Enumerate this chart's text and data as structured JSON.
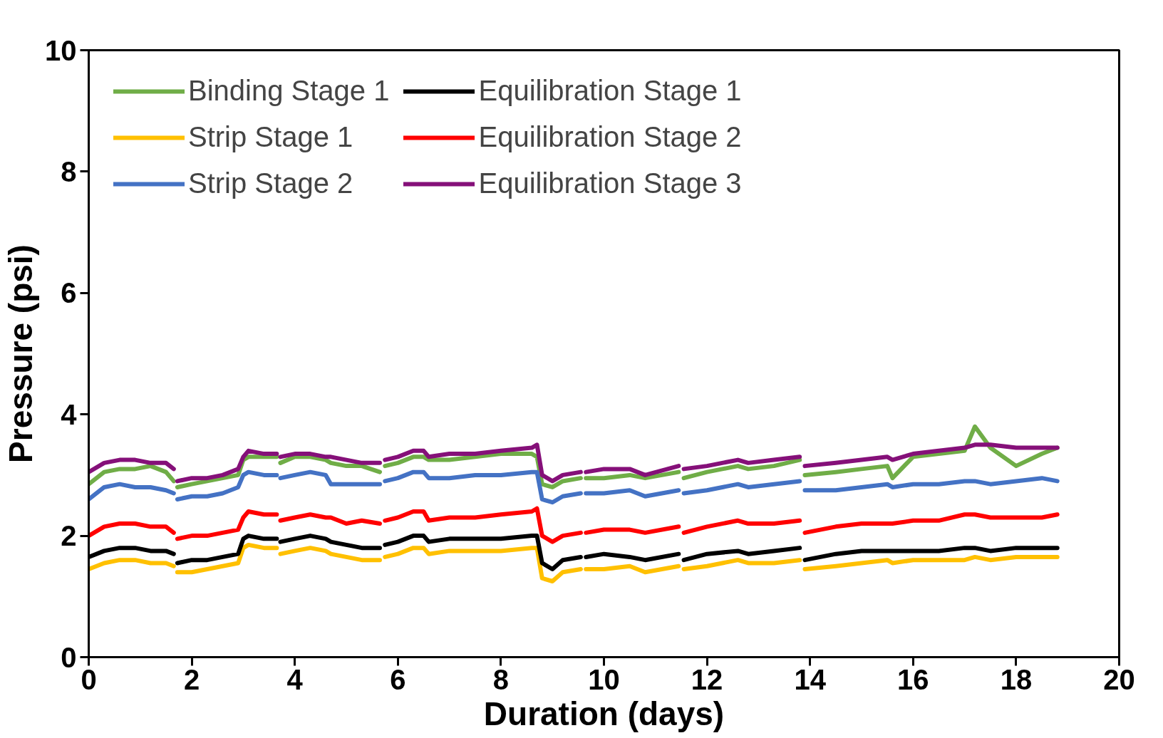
{
  "chart_data": {
    "type": "line",
    "xlabel": "Duration (days)",
    "ylabel": "Pressure (psi)",
    "x": [
      0,
      0.3,
      0.6,
      0.9,
      1.2,
      1.5,
      1.65,
      1.68,
      1.72,
      2.0,
      2.3,
      2.6,
      2.9,
      3.0,
      3.1,
      3.4,
      3.65,
      3.68,
      3.72,
      4.0,
      4.3,
      4.6,
      4.7,
      5.0,
      5.3,
      5.65,
      5.7,
      5.75,
      6.0,
      6.3,
      6.5,
      6.6,
      7.0,
      7.5,
      8.0,
      8.6,
      8.7,
      8.8,
      9.0,
      9.2,
      9.55,
      9.6,
      9.65,
      10.0,
      10.5,
      10.8,
      11.45,
      11.5,
      11.55,
      12.0,
      12.6,
      12.8,
      13.3,
      13.8,
      13.85,
      13.9,
      14.5,
      15.0,
      15.5,
      15.6,
      16.0,
      16.5,
      17.0,
      17.2,
      17.5,
      18.0,
      18.5,
      18.8
    ],
    "series": [
      {
        "name": "Binding Stage 1",
        "color": "#70ad47",
        "values": [
          2.85,
          3.05,
          3.1,
          3.1,
          3.15,
          3.05,
          2.9,
          null,
          2.8,
          2.85,
          2.9,
          2.95,
          3.0,
          3.25,
          3.3,
          3.3,
          3.3,
          null,
          3.2,
          3.3,
          3.3,
          3.25,
          3.2,
          3.15,
          3.15,
          3.05,
          null,
          3.15,
          3.2,
          3.3,
          3.3,
          3.25,
          3.25,
          3.3,
          3.35,
          3.35,
          3.3,
          2.85,
          2.8,
          2.9,
          2.95,
          null,
          2.95,
          2.95,
          3.0,
          2.95,
          3.05,
          null,
          2.95,
          3.05,
          3.15,
          3.1,
          3.15,
          3.25,
          null,
          3.0,
          3.05,
          3.1,
          3.15,
          2.95,
          3.3,
          3.35,
          3.4,
          3.8,
          3.45,
          3.15,
          3.35,
          3.45
        ]
      },
      {
        "name": "Strip Stage 1",
        "color": "#ffc000",
        "values": [
          1.45,
          1.55,
          1.6,
          1.6,
          1.55,
          1.55,
          1.5,
          null,
          1.4,
          1.4,
          1.45,
          1.5,
          1.55,
          1.8,
          1.85,
          1.8,
          1.8,
          null,
          1.7,
          1.75,
          1.8,
          1.75,
          1.7,
          1.65,
          1.6,
          1.6,
          null,
          1.65,
          1.7,
          1.8,
          1.8,
          1.7,
          1.75,
          1.75,
          1.75,
          1.8,
          1.8,
          1.3,
          1.25,
          1.4,
          1.45,
          null,
          1.45,
          1.45,
          1.5,
          1.4,
          1.5,
          null,
          1.45,
          1.5,
          1.6,
          1.55,
          1.55,
          1.6,
          null,
          1.45,
          1.5,
          1.55,
          1.6,
          1.55,
          1.6,
          1.6,
          1.6,
          1.65,
          1.6,
          1.65,
          1.65,
          1.65
        ]
      },
      {
        "name": "Strip Stage 2",
        "color": "#4472c4",
        "values": [
          2.6,
          2.8,
          2.85,
          2.8,
          2.8,
          2.75,
          2.7,
          null,
          2.6,
          2.65,
          2.65,
          2.7,
          2.8,
          3.0,
          3.05,
          3.0,
          3.0,
          null,
          2.95,
          3.0,
          3.05,
          3.0,
          2.85,
          2.85,
          2.85,
          2.85,
          null,
          2.9,
          2.95,
          3.05,
          3.05,
          2.95,
          2.95,
          3.0,
          3.0,
          3.05,
          3.05,
          2.6,
          2.55,
          2.65,
          2.7,
          null,
          2.7,
          2.7,
          2.75,
          2.65,
          2.75,
          null,
          2.7,
          2.75,
          2.85,
          2.8,
          2.85,
          2.9,
          null,
          2.75,
          2.75,
          2.8,
          2.85,
          2.8,
          2.85,
          2.85,
          2.9,
          2.9,
          2.85,
          2.9,
          2.95,
          2.9
        ]
      },
      {
        "name": "Equilibration Stage 1",
        "color": "#000000",
        "values": [
          1.65,
          1.75,
          1.8,
          1.8,
          1.75,
          1.75,
          1.7,
          null,
          1.55,
          1.6,
          1.6,
          1.65,
          1.7,
          1.95,
          2.0,
          1.95,
          1.95,
          null,
          1.9,
          1.95,
          2.0,
          1.95,
          1.9,
          1.85,
          1.8,
          1.8,
          null,
          1.85,
          1.9,
          2.0,
          2.0,
          1.9,
          1.95,
          1.95,
          1.95,
          2.0,
          2.0,
          1.55,
          1.45,
          1.6,
          1.65,
          null,
          1.65,
          1.7,
          1.65,
          1.6,
          1.7,
          null,
          1.6,
          1.7,
          1.75,
          1.7,
          1.75,
          1.8,
          null,
          1.6,
          1.7,
          1.75,
          1.75,
          1.75,
          1.75,
          1.75,
          1.8,
          1.8,
          1.75,
          1.8,
          1.8,
          1.8
        ]
      },
      {
        "name": "Equilibration Stage 2",
        "color": "#ff0000",
        "values": [
          2.0,
          2.15,
          2.2,
          2.2,
          2.15,
          2.15,
          2.05,
          null,
          1.95,
          2.0,
          2.0,
          2.05,
          2.1,
          2.3,
          2.4,
          2.35,
          2.35,
          null,
          2.25,
          2.3,
          2.35,
          2.3,
          2.3,
          2.2,
          2.25,
          2.2,
          null,
          2.25,
          2.3,
          2.4,
          2.4,
          2.25,
          2.3,
          2.3,
          2.35,
          2.4,
          2.45,
          2.0,
          1.9,
          2.0,
          2.05,
          null,
          2.05,
          2.1,
          2.1,
          2.05,
          2.15,
          null,
          2.05,
          2.15,
          2.25,
          2.2,
          2.2,
          2.25,
          null,
          2.05,
          2.15,
          2.2,
          2.2,
          2.2,
          2.25,
          2.25,
          2.35,
          2.35,
          2.3,
          2.3,
          2.3,
          2.35
        ]
      },
      {
        "name": "Equilibration Stage 3",
        "color": "#851079",
        "values": [
          3.05,
          3.2,
          3.25,
          3.25,
          3.2,
          3.2,
          3.1,
          null,
          2.9,
          2.95,
          2.95,
          3.0,
          3.1,
          3.3,
          3.4,
          3.35,
          3.35,
          null,
          3.3,
          3.35,
          3.35,
          3.3,
          3.3,
          3.25,
          3.2,
          3.2,
          null,
          3.25,
          3.3,
          3.4,
          3.4,
          3.3,
          3.35,
          3.35,
          3.4,
          3.45,
          3.5,
          3.0,
          2.9,
          3.0,
          3.05,
          null,
          3.05,
          3.1,
          3.1,
          3.0,
          3.15,
          null,
          3.1,
          3.15,
          3.25,
          3.2,
          3.25,
          3.3,
          null,
          3.15,
          3.2,
          3.25,
          3.3,
          3.25,
          3.35,
          3.4,
          3.45,
          3.5,
          3.5,
          3.45,
          3.45,
          3.45
        ]
      }
    ],
    "xlim": [
      0,
      20
    ],
    "xticks": [
      0,
      2,
      4,
      6,
      8,
      10,
      12,
      14,
      16,
      18,
      20
    ],
    "ylim": [
      0,
      10
    ],
    "yticks": [
      0,
      2,
      4,
      6,
      8,
      10
    ],
    "legend": "top",
    "grid": false
  }
}
